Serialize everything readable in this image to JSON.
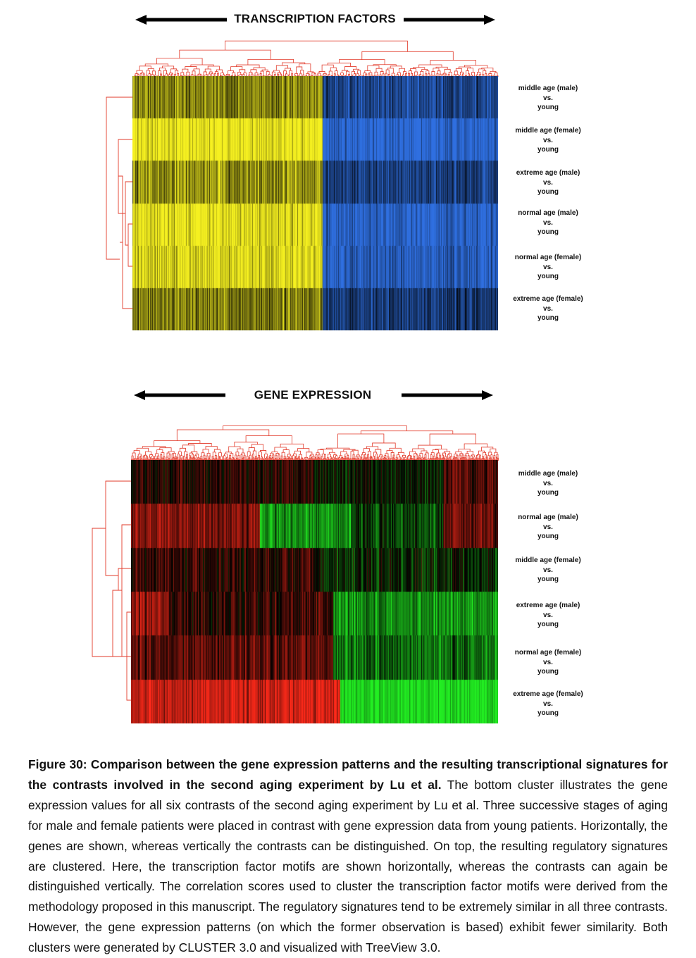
{
  "top_panel": {
    "title": "TRANSCRIPTION FACTORS",
    "row_labels": [
      {
        "line1": "middle age (male)",
        "line2": "vs.",
        "line3": "young"
      },
      {
        "line1": "middle age (female)",
        "line2": "vs.",
        "line3": "young"
      },
      {
        "line1": "extreme age (male)",
        "line2": "vs.",
        "line3": "young"
      },
      {
        "line1": "normal age (male)",
        "line2": "vs.",
        "line3": "young"
      },
      {
        "line1": "normal age (female)",
        "line2": "vs.",
        "line3": "young"
      },
      {
        "line1": "extreme age (female)",
        "line2": "vs.",
        "line3": "young"
      }
    ],
    "colors": {
      "positive": "#f5f020",
      "negative": "#2f6fe0",
      "zero": "#000000",
      "dendrogram": "#e23a2a"
    }
  },
  "bottom_panel": {
    "title": "GENE EXPRESSION",
    "row_labels": [
      {
        "line1": "middle age (male)",
        "line2": "vs.",
        "line3": "young"
      },
      {
        "line1": "normal age (male)",
        "line2": "vs.",
        "line3": "young"
      },
      {
        "line1": "middle age (female)",
        "line2": "vs.",
        "line3": "young"
      },
      {
        "line1": "extreme age (male)",
        "line2": "vs.",
        "line3": "young"
      },
      {
        "line1": "normal age (female)",
        "line2": "vs.",
        "line3": "young"
      },
      {
        "line1": "extreme age (female)",
        "line2": "vs.",
        "line3": "young"
      }
    ],
    "colors": {
      "positive": "#ff2a1a",
      "negative": "#22ee22",
      "zero": "#000000",
      "dendrogram": "#e23a2a"
    }
  },
  "caption": {
    "bold": "Figure 30: Comparison between the gene expression patterns and the resulting transcriptional signatures for the contrasts involved in the second aging experiment by Lu et al.",
    "text": " The bottom cluster illustrates the gene expression values for all six contrasts of the second aging experiment by Lu et al. Three successive stages of aging for male and female patients were placed in contrast with gene expression data from young patients. Horizontally, the genes are shown, whereas vertically the contrasts can be distinguished. On top, the resulting regulatory signatures are clustered. Here, the transcription factor motifs are shown horizontally, whereas the contrasts can again be distinguished vertically. The correlation scores used to cluster the transcription factor motifs were derived from the methodology proposed in this manuscript. The regulatory signatures tend to be extremely similar in all three contrasts. However, the gene expression patterns (on which the former observation is based) exhibit fewer similarity. Both clusters were generated by CLUSTER 3.0 and visualized with TreeView 3.0."
  }
}
